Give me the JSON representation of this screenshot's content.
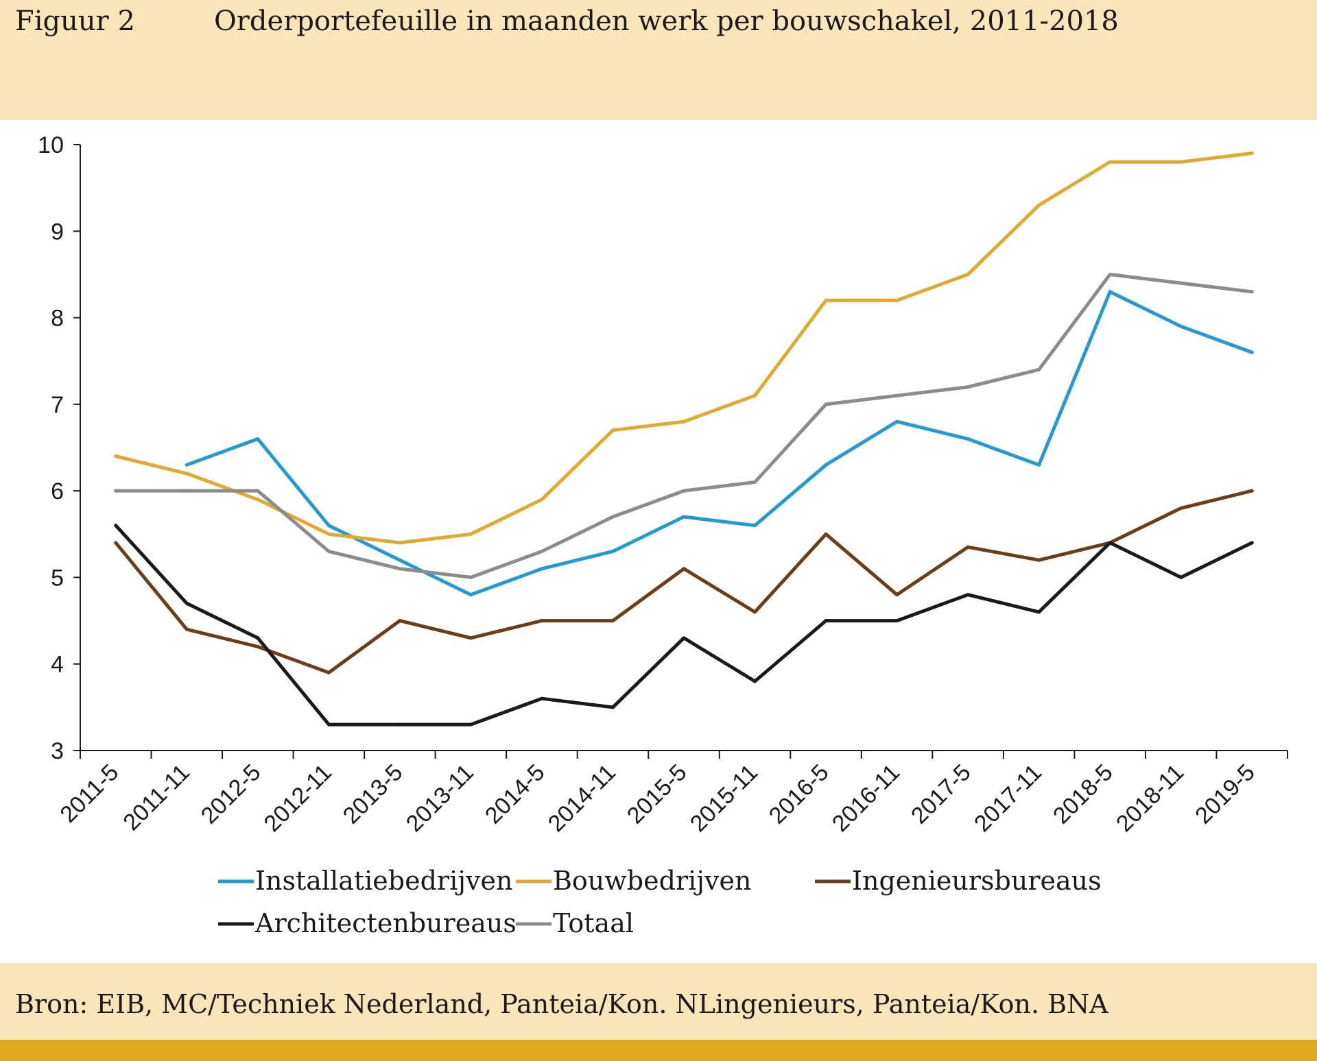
{
  "header": {
    "figure_label": "Figuur 2",
    "title": "Orderportefeuille in maanden werk per bouwschakel, 2011-2018"
  },
  "footer": {
    "source": "Bron: EIB, MC/Techniek Nederland, Panteia/Kon. NLingenieurs, Panteia/Kon. BNA"
  },
  "colors": {
    "header_bg": "#f8e6b8",
    "bottom_bar": "#e0a81f"
  },
  "chart_data": {
    "type": "line",
    "title": "Orderportefeuille in maanden werk per bouwschakel, 2011-2018",
    "xlabel": "",
    "ylabel": "",
    "ylim": [
      3,
      10
    ],
    "yticks": [
      3,
      4,
      5,
      6,
      7,
      8,
      9,
      10
    ],
    "grid": false,
    "legend_position": "bottom",
    "categories": [
      "2011-5",
      "2011-11",
      "2012-5",
      "2012-11",
      "2013-5",
      "2013-11",
      "2014-5",
      "2014-11",
      "2015-5",
      "2015-11",
      "2016-5",
      "2016-11",
      "2017-5",
      "2017-11",
      "2018-5",
      "2018-11",
      "2019-5"
    ],
    "series": [
      {
        "name": "Installatiebedrijven",
        "color": "#1f9bd7",
        "values": [
          null,
          6.3,
          6.6,
          5.6,
          5.2,
          4.8,
          5.1,
          5.3,
          5.7,
          5.6,
          6.3,
          6.8,
          6.6,
          6.3,
          8.3,
          7.9,
          7.6
        ]
      },
      {
        "name": "Bouwbedrijven",
        "color": "#e3a92c",
        "values": [
          6.4,
          6.2,
          5.9,
          5.5,
          5.4,
          5.5,
          5.9,
          6.7,
          6.8,
          7.1,
          8.2,
          8.2,
          8.5,
          9.3,
          9.8,
          9.8,
          9.9
        ]
      },
      {
        "name": "Ingenieursbureaus",
        "color": "#6b3e1a",
        "values": [
          5.4,
          4.4,
          4.2,
          3.9,
          4.5,
          4.3,
          4.5,
          4.5,
          5.1,
          4.6,
          5.5,
          4.8,
          5.35,
          5.2,
          5.4,
          5.8,
          6.0
        ]
      },
      {
        "name": "Architectenbureaus",
        "color": "#1a1a1a",
        "values": [
          5.6,
          4.7,
          4.3,
          3.3,
          3.3,
          3.3,
          3.6,
          3.5,
          4.3,
          3.8,
          4.5,
          4.5,
          4.8,
          4.6,
          5.4,
          5.0,
          5.4
        ]
      },
      {
        "name": "Totaal",
        "color": "#8c8c8c",
        "values": [
          6.0,
          6.0,
          6.0,
          5.3,
          5.1,
          5.0,
          5.3,
          5.7,
          6.0,
          6.1,
          7.0,
          7.1,
          7.2,
          7.4,
          8.5,
          8.4,
          8.3
        ]
      }
    ]
  }
}
